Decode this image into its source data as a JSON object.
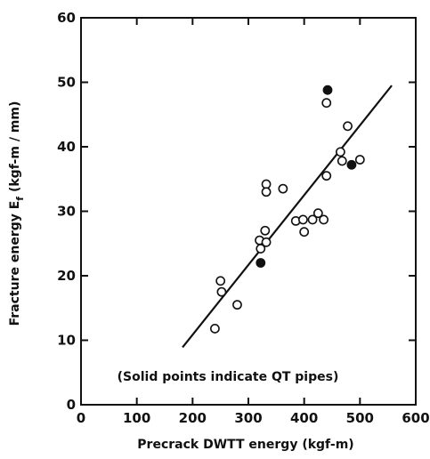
{
  "chart_data": {
    "type": "scatter",
    "xlabel": "Precrack DWTT energy  (kgf-m)",
    "ylabel": "Fracture energy  E",
    "ylabel_sub": "f",
    "ylabel_unit": "  (kgf-m / mm)",
    "annotation": "(Solid points indicate QT pipes)",
    "xlim": [
      0,
      600
    ],
    "ylim": [
      0,
      60
    ],
    "x_ticks": [
      0,
      100,
      200,
      300,
      400,
      500,
      600
    ],
    "y_ticks": [
      0,
      10,
      20,
      30,
      40,
      50,
      60
    ],
    "x_tick_labels": [
      "0",
      "100",
      "200",
      "300",
      "400",
      "500",
      "600"
    ],
    "y_tick_labels": [
      "0",
      "10",
      "20",
      "30",
      "40",
      "50",
      "60"
    ],
    "grid": false,
    "series": [
      {
        "marker": "open-circle",
        "points": [
          [
            240,
            11.8
          ],
          [
            250,
            19.2
          ],
          [
            252,
            17.5
          ],
          [
            280,
            15.5
          ],
          [
            320,
            25.5
          ],
          [
            322,
            24.2
          ],
          [
            330,
            27.0
          ],
          [
            332,
            25.2
          ],
          [
            332,
            34.2
          ],
          [
            332,
            33.0
          ],
          [
            362,
            33.5
          ],
          [
            385,
            28.5
          ],
          [
            398,
            28.7
          ],
          [
            400,
            26.8
          ],
          [
            415,
            28.7
          ],
          [
            425,
            29.7
          ],
          [
            435,
            28.7
          ],
          [
            440,
            35.5
          ],
          [
            440,
            46.8
          ],
          [
            465,
            39.2
          ],
          [
            468,
            37.8
          ],
          [
            478,
            43.2
          ],
          [
            500,
            38.0
          ]
        ]
      },
      {
        "marker": "solid-circle",
        "points": [
          [
            322,
            22.0
          ],
          [
            442,
            48.8
          ],
          [
            485,
            37.2
          ]
        ]
      }
    ],
    "trend_line": {
      "x": [
        182,
        557
      ],
      "y": [
        8.9,
        49.5
      ]
    }
  }
}
